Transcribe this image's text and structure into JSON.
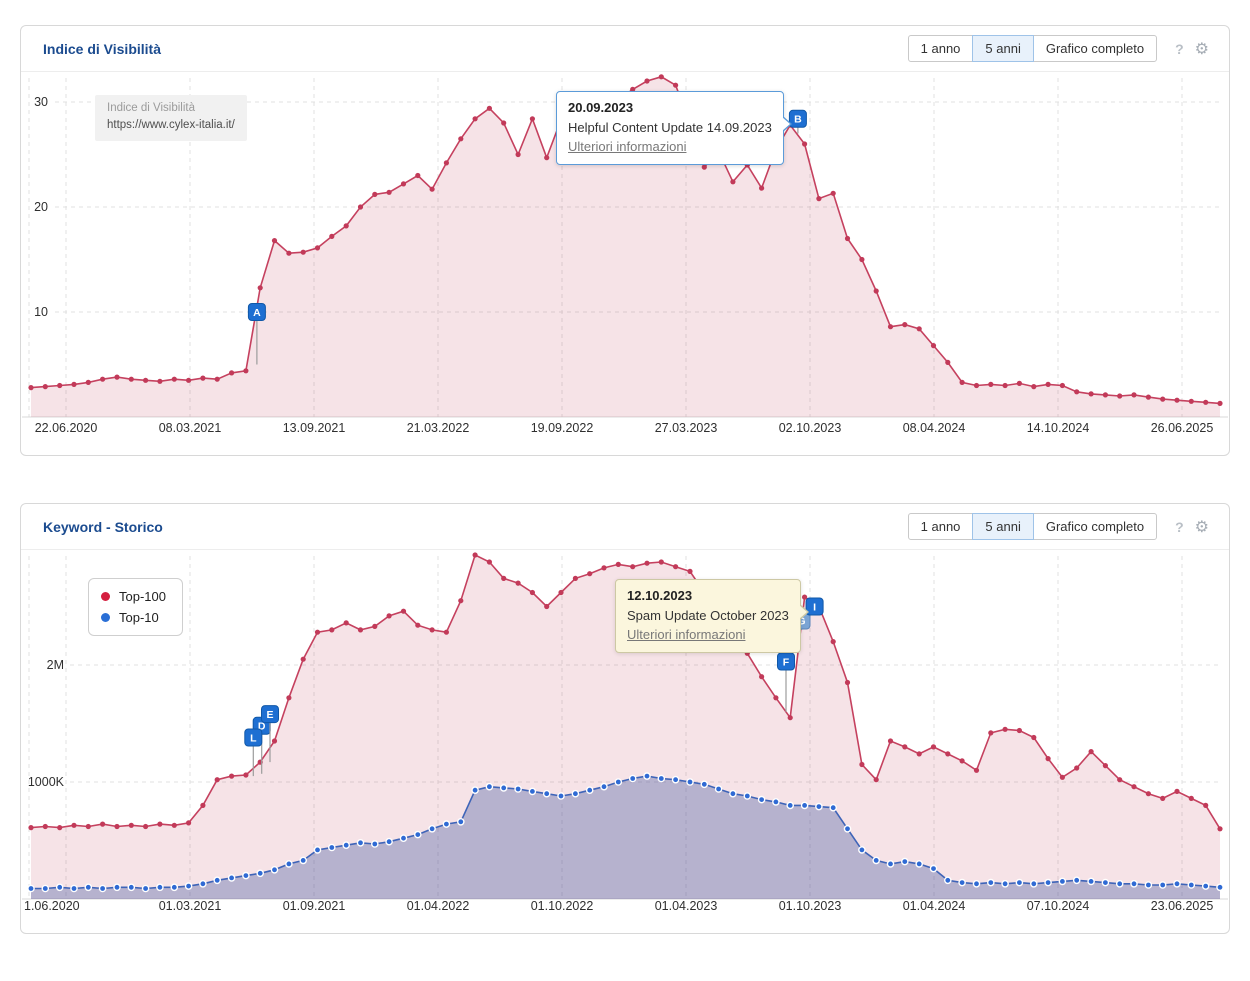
{
  "icons": {
    "help_glyph": "?",
    "gear_glyph": "⚙"
  },
  "panels": [
    {
      "title": "Indice di Visibilità",
      "controls": {
        "buttons": [
          {
            "label": "1 anno",
            "active": false
          },
          {
            "label": "5 anni",
            "active": true
          },
          {
            "label": "Grafico completo",
            "active": false
          }
        ]
      },
      "watermark": {
        "line1": "Indice di Visibilità",
        "line2": "https://www.cylex-italia.it/"
      },
      "tooltip": {
        "date": "20.09.2023",
        "text": "Helpful Content Update 14.09.2023",
        "link": "Ulteriori informazioni",
        "anchor": "B",
        "style": "blue"
      },
      "markers": [
        {
          "letter": "A",
          "t": 0.19,
          "pin_value": 10.0,
          "anchor_value": 5.0
        },
        {
          "letter": "B",
          "t": 0.645,
          "pin_value": 28.4,
          "anchor_value": 27.0
        }
      ],
      "chart_data": {
        "type": "area",
        "title": "Indice di Visibilità",
        "x_tick_labels": [
          "22.06.2020",
          "08.03.2021",
          "13.09.2021",
          "21.03.2022",
          "19.09.2022",
          "27.03.2023",
          "02.10.2023",
          "08.04.2024",
          "14.10.2024",
          "26.06.2025"
        ],
        "y_ticks": [
          {
            "label": "10",
            "value": 10
          },
          {
            "label": "20",
            "value": 20
          },
          {
            "label": "30",
            "value": 30
          }
        ],
        "ylim": [
          0,
          33
        ],
        "grid": "dashed",
        "series": [
          {
            "name": "Indice di Visibilità",
            "color": "#c5415f",
            "dot_color": "#c23a59",
            "dot_stroke": "",
            "fill": "rgba(197,65,95,0.15)",
            "values": [
              2.8,
              2.9,
              3.0,
              3.1,
              3.3,
              3.6,
              3.8,
              3.6,
              3.5,
              3.4,
              3.6,
              3.5,
              3.7,
              3.6,
              4.2,
              4.4,
              12.3,
              16.8,
              15.6,
              15.7,
              16.1,
              17.2,
              18.2,
              20.0,
              21.2,
              21.4,
              22.2,
              23.0,
              21.7,
              24.2,
              26.5,
              28.4,
              29.4,
              28.0,
              25.0,
              28.4,
              24.7,
              28.3,
              26.5,
              27.5,
              29.0,
              30.2,
              31.2,
              32.0,
              32.4,
              31.6,
              28.0,
              23.8,
              25.3,
              22.4,
              24.0,
              21.8,
              25.5,
              27.8,
              26.0,
              20.8,
              21.3,
              17.0,
              15.0,
              12.0,
              8.6,
              8.8,
              8.4,
              6.8,
              5.2,
              3.3,
              3.0,
              3.1,
              3.0,
              3.2,
              2.9,
              3.1,
              3.0,
              2.4,
              2.2,
              2.1,
              2.0,
              2.1,
              1.9,
              1.7,
              1.6,
              1.5,
              1.4,
              1.3
            ]
          }
        ]
      }
    },
    {
      "title": "Keyword - Storico",
      "controls": {
        "buttons": [
          {
            "label": "1 anno",
            "active": false
          },
          {
            "label": "5 anni",
            "active": true
          },
          {
            "label": "Grafico completo",
            "active": false
          }
        ]
      },
      "legend": {
        "items": [
          {
            "label": "Top-100",
            "color": "#d41f3f"
          },
          {
            "label": "Top-10",
            "color": "#2a6fd6"
          }
        ]
      },
      "tooltip": {
        "date": "12.10.2023",
        "text": "Spam Update October 2023",
        "link": "Ulteriori informazioni",
        "anchor": "I",
        "style": "cream"
      },
      "markers": [
        {
          "letter": "D",
          "t": 0.194,
          "pin_value": 1.48,
          "anchor_value": 1.07
        },
        {
          "letter": "L",
          "t": 0.187,
          "pin_value": 1.38,
          "anchor_value": 1.05
        },
        {
          "letter": "E",
          "t": 0.201,
          "pin_value": 1.58,
          "anchor_value": 1.17
        },
        {
          "letter": "F",
          "t": 0.635,
          "pin_value": 2.03,
          "anchor_value": 1.6
        },
        {
          "letter": "G",
          "t": 0.648,
          "pin_value": 2.38,
          "anchor_value": 2.3,
          "light": true
        },
        {
          "letter": "I",
          "t": 0.659,
          "pin_value": 2.5,
          "anchor_value": 2.52
        }
      ],
      "chart_data": {
        "type": "area",
        "title": "Keyword - Storico",
        "x_tick_labels": [
          "1.06.2020",
          "01.03.2021",
          "01.09.2021",
          "01.04.2022",
          "01.10.2022",
          "01.04.2023",
          "01.10.2023",
          "01.04.2024",
          "07.10.2024",
          "23.06.2025"
        ],
        "y_ticks": [
          {
            "label": "1000K",
            "value": 1
          },
          {
            "label": "2M",
            "value": 2
          }
        ],
        "ylim": [
          0,
          3.0
        ],
        "unit": "keywords (millions)",
        "grid": "dashed",
        "series": [
          {
            "name": "Top-100",
            "color": "#c5415f",
            "dot_color": "#c23a59",
            "dot_stroke": "",
            "fill": "rgba(197,65,95,0.15)",
            "values": [
              0.61,
              0.62,
              0.61,
              0.63,
              0.62,
              0.64,
              0.62,
              0.63,
              0.62,
              0.64,
              0.63,
              0.65,
              0.8,
              1.02,
              1.05,
              1.06,
              1.17,
              1.35,
              1.72,
              2.05,
              2.28,
              2.3,
              2.36,
              2.3,
              2.33,
              2.42,
              2.46,
              2.34,
              2.3,
              2.28,
              2.55,
              2.94,
              2.88,
              2.74,
              2.7,
              2.62,
              2.5,
              2.62,
              2.74,
              2.78,
              2.83,
              2.86,
              2.84,
              2.87,
              2.88,
              2.84,
              2.8,
              2.62,
              2.48,
              2.3,
              2.1,
              1.9,
              1.72,
              1.55,
              2.58,
              2.5,
              2.2,
              1.85,
              1.15,
              1.02,
              1.35,
              1.3,
              1.24,
              1.3,
              1.24,
              1.18,
              1.1,
              1.42,
              1.45,
              1.44,
              1.38,
              1.2,
              1.04,
              1.12,
              1.26,
              1.14,
              1.02,
              0.96,
              0.9,
              0.86,
              0.92,
              0.86,
              0.8,
              0.6
            ]
          },
          {
            "name": "Top-10",
            "color": "#3e64b8",
            "dot_color": "#2f6ad4",
            "dot_stroke": "#ffffff",
            "fill": "rgba(62,86,160,0.35)",
            "values": [
              0.09,
              0.09,
              0.1,
              0.09,
              0.1,
              0.09,
              0.1,
              0.1,
              0.09,
              0.1,
              0.1,
              0.11,
              0.13,
              0.16,
              0.18,
              0.2,
              0.22,
              0.25,
              0.3,
              0.33,
              0.42,
              0.44,
              0.46,
              0.48,
              0.47,
              0.49,
              0.52,
              0.55,
              0.6,
              0.64,
              0.66,
              0.93,
              0.96,
              0.95,
              0.94,
              0.92,
              0.9,
              0.88,
              0.9,
              0.93,
              0.96,
              1.0,
              1.03,
              1.05,
              1.03,
              1.02,
              1.0,
              0.98,
              0.94,
              0.9,
              0.88,
              0.85,
              0.83,
              0.8,
              0.8,
              0.79,
              0.78,
              0.6,
              0.42,
              0.33,
              0.3,
              0.32,
              0.3,
              0.26,
              0.16,
              0.14,
              0.13,
              0.14,
              0.13,
              0.14,
              0.13,
              0.14,
              0.15,
              0.16,
              0.15,
              0.14,
              0.13,
              0.13,
              0.12,
              0.12,
              0.13,
              0.12,
              0.11,
              0.1
            ]
          }
        ]
      }
    }
  ]
}
